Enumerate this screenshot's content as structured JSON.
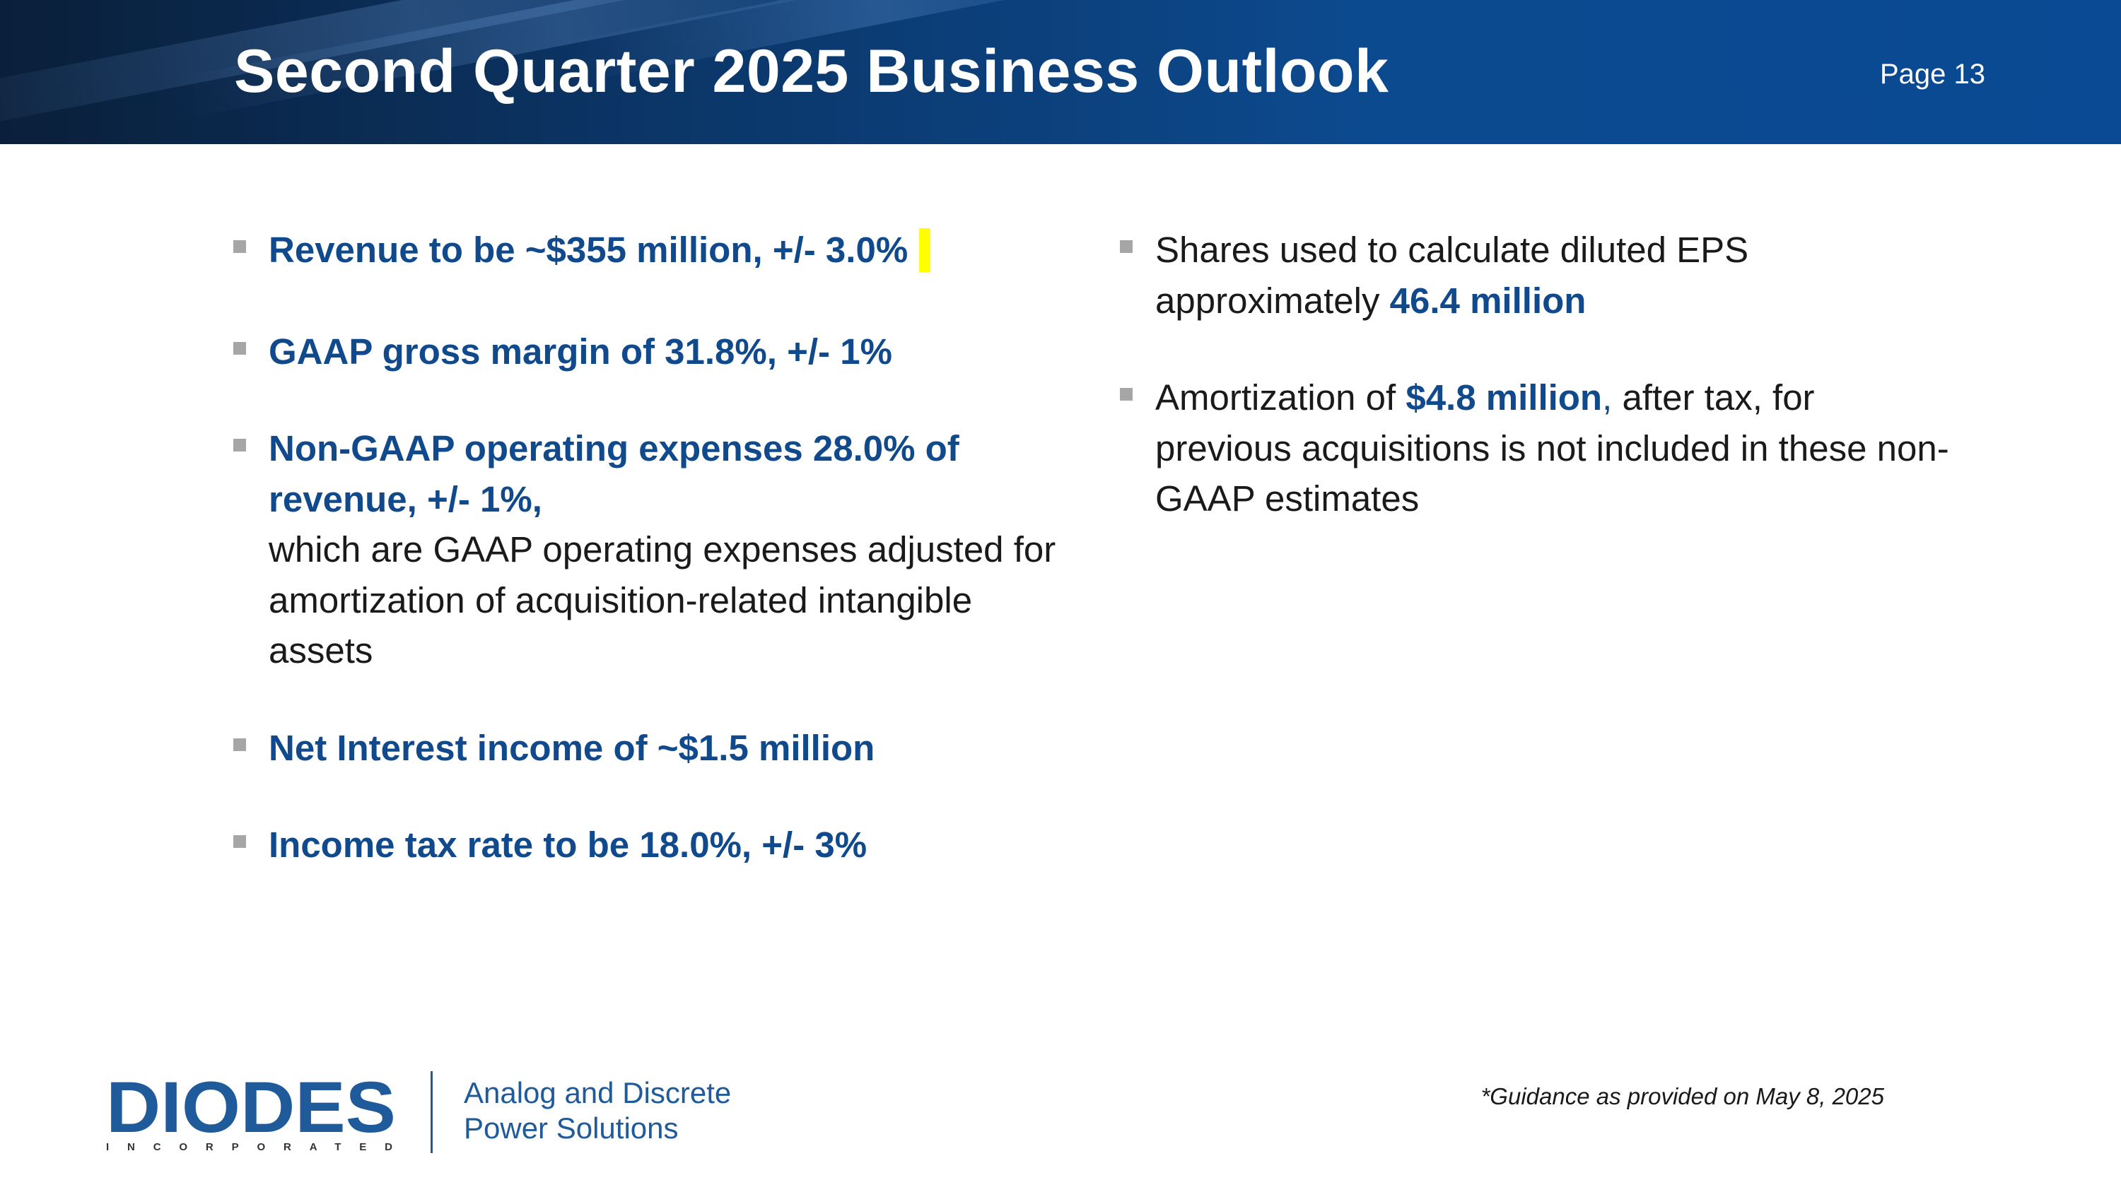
{
  "header": {
    "title": "Second Quarter 2025 Business Outlook",
    "page": "Page 13"
  },
  "left_bullets": [
    {
      "text": "Revenue to be ~$355 million, +/- 3.0%"
    },
    {
      "text": "GAAP gross margin of 31.8%, +/- 1%"
    },
    {
      "bold": "Non-GAAP operating expenses 28.0% of revenue, +/- 1%,",
      "rest": "which are GAAP operating expenses adjusted for amortization of acquisition-related intangible assets"
    },
    {
      "text": "Net Interest income of ~$1.5 million"
    },
    {
      "text": "Income tax rate to be 18.0%, +/- 3%"
    }
  ],
  "right_bullets": [
    {
      "lead": "Shares used to calculate diluted EPS approximately",
      "bold": "46.4 million"
    },
    {
      "lead": "Amortization of",
      "bold": "$4.8 million",
      "comma": ",",
      "rest": "after tax, for previous acquisitions is not included in these non-GAAP estimates"
    }
  ],
  "footer": {
    "logo_text": "DIODES",
    "logo_sub": "INCORPORATED",
    "tagline_line1": "Analog and Discrete",
    "tagline_line2": "Power Solutions",
    "footnote": "*Guidance as provided on May 8, 2025"
  },
  "colors": {
    "header_bg": "#0b3a72",
    "accent_blue": "#114a8c",
    "highlight": "#ffff00",
    "logo_blue": "#1f5a9a"
  }
}
